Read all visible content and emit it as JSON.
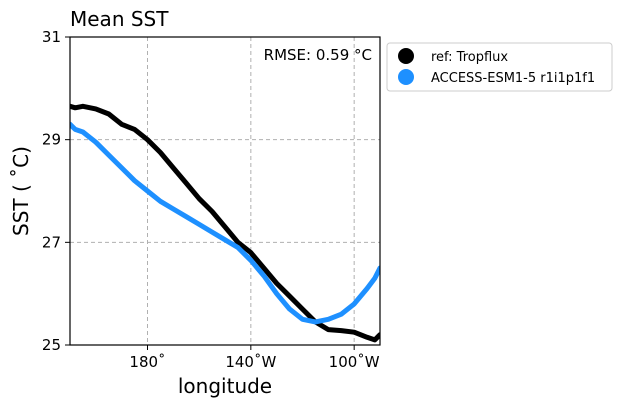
{
  "chart_data": {
    "type": "line",
    "title": "Mean SST",
    "annotation": "RMSE: 0.59 °C",
    "xlabel": "longitude",
    "ylabel": "SST ($^\\circ$C)",
    "ylabel_display": "SST ( ˚C)",
    "xlim": [
      150,
      270
    ],
    "ylim": [
      25,
      31
    ],
    "xticks": [
      {
        "value": 180,
        "label": "180˚"
      },
      {
        "value": 220,
        "label": "140˚W"
      },
      {
        "value": 260,
        "label": "100˚W"
      }
    ],
    "yticks": [
      {
        "value": 25,
        "label": "25"
      },
      {
        "value": 27,
        "label": "27"
      },
      {
        "value": 29,
        "label": "29"
      },
      {
        "value": 31,
        "label": "31"
      }
    ],
    "grid": true,
    "legend_position": "outside-right",
    "series": [
      {
        "name": "ref: Tropflux",
        "color": "#000000",
        "x": [
          150,
          152,
          155,
          160,
          165,
          170,
          175,
          180,
          185,
          190,
          195,
          200,
          205,
          210,
          215,
          220,
          225,
          230,
          235,
          240,
          245,
          250,
          255,
          260,
          265,
          268,
          270
        ],
        "y": [
          29.65,
          29.62,
          29.65,
          29.6,
          29.5,
          29.3,
          29.2,
          29.0,
          28.75,
          28.45,
          28.15,
          27.85,
          27.6,
          27.3,
          27.0,
          26.8,
          26.5,
          26.2,
          25.95,
          25.7,
          25.45,
          25.3,
          25.28,
          25.25,
          25.15,
          25.1,
          25.2
        ]
      },
      {
        "name": "ACCESS-ESM1-5 r1i1p1f1",
        "color": "#1e90ff",
        "x": [
          150,
          152,
          155,
          160,
          165,
          170,
          175,
          180,
          185,
          190,
          195,
          200,
          205,
          210,
          215,
          220,
          225,
          230,
          235,
          240,
          245,
          250,
          255,
          260,
          265,
          268,
          270
        ],
        "y": [
          29.3,
          29.2,
          29.15,
          28.95,
          28.7,
          28.45,
          28.2,
          28.0,
          27.8,
          27.65,
          27.5,
          27.35,
          27.2,
          27.05,
          26.9,
          26.65,
          26.35,
          26.0,
          25.7,
          25.5,
          25.45,
          25.5,
          25.6,
          25.8,
          26.1,
          26.3,
          26.5
        ]
      }
    ]
  }
}
